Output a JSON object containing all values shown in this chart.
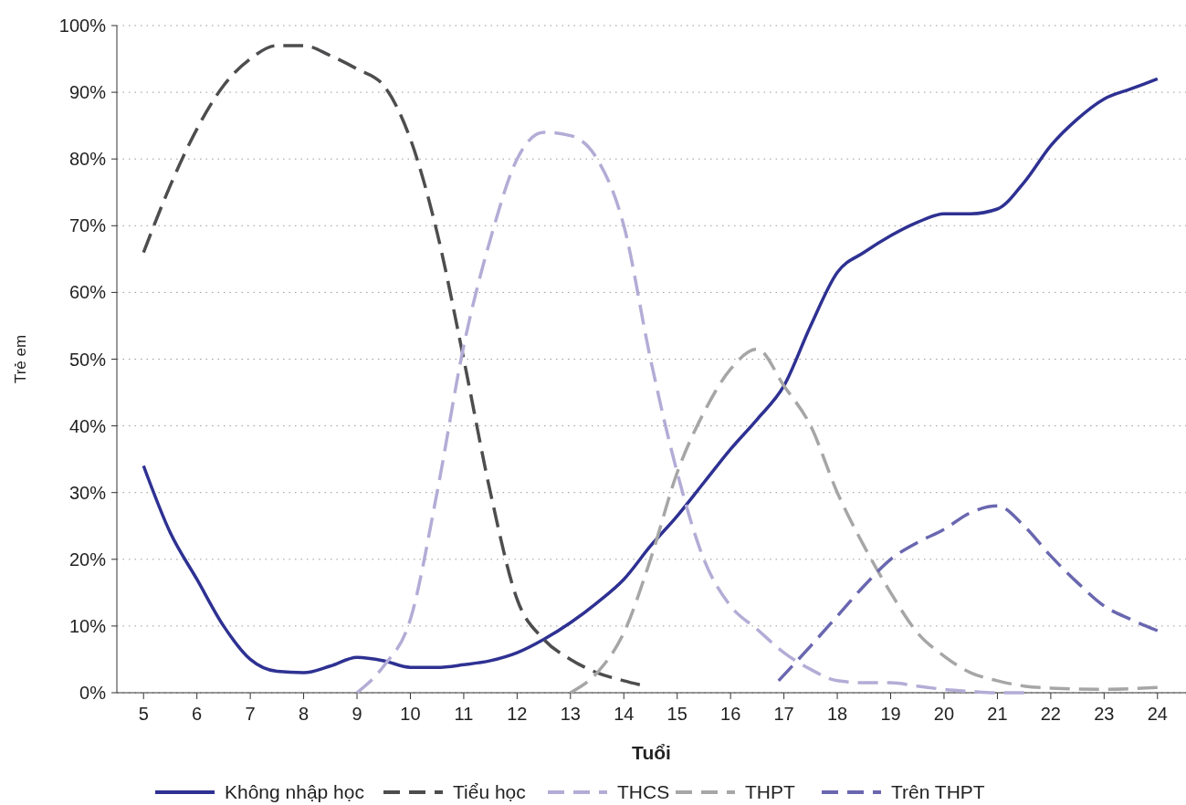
{
  "chart_data": {
    "type": "line",
    "xlabel": "Tuổi",
    "ylabel": "Trẻ em",
    "xlim": [
      4.5,
      24.5
    ],
    "ylim": [
      0,
      100
    ],
    "xticks": [
      5,
      6,
      7,
      8,
      9,
      10,
      11,
      12,
      13,
      14,
      15,
      16,
      17,
      18,
      19,
      20,
      21,
      22,
      23,
      24
    ],
    "yticks": [
      {
        "value": 0,
        "label": "0%"
      },
      {
        "value": 10,
        "label": "10%"
      },
      {
        "value": 20,
        "label": "20%"
      },
      {
        "value": 30,
        "label": "30%"
      },
      {
        "value": 40,
        "label": "40%"
      },
      {
        "value": 50,
        "label": "50%"
      },
      {
        "value": 60,
        "label": "60%"
      },
      {
        "value": 70,
        "label": "70%"
      },
      {
        "value": 80,
        "label": "80%"
      },
      {
        "value": 90,
        "label": "90%"
      },
      {
        "value": 100,
        "label": "100%"
      }
    ],
    "grid": "y",
    "legend": "bottom",
    "marker": "none",
    "series": [
      {
        "name": "Không nhập học",
        "color": "#2e3192",
        "line_style": "solid",
        "x": [
          5,
          5.5,
          6,
          6.5,
          7,
          7.5,
          8,
          8.5,
          9,
          9.5,
          10,
          10.5,
          11,
          11.5,
          12,
          12.5,
          13,
          13.5,
          14,
          14.5,
          15,
          15.5,
          16,
          16.5,
          17,
          17.5,
          18,
          18.5,
          19,
          19.5,
          20,
          20.5,
          21,
          21.5,
          22,
          22.5,
          23,
          23.5,
          24
        ],
        "values": [
          34,
          24,
          17,
          10,
          5,
          3.2,
          3,
          4,
          5.3,
          4.8,
          3.8,
          3.8,
          4.2,
          4.8,
          6,
          8,
          10.5,
          13.5,
          17,
          22,
          26.5,
          31.5,
          36.5,
          41,
          46,
          55,
          63,
          66,
          68.5,
          70.5,
          71.8,
          71.8,
          72.5,
          76.5,
          82,
          86,
          89,
          90.5,
          92
        ]
      },
      {
        "name": "Tiểu học",
        "color": "#4d4d4f",
        "line_style": "dashed",
        "x": [
          5,
          5.5,
          6,
          6.5,
          7,
          7.5,
          8,
          8.5,
          9,
          9.5,
          10,
          10.5,
          11,
          11.5,
          12,
          12.5,
          13,
          13.5,
          14,
          14.3
        ],
        "values": [
          66,
          76,
          84.5,
          91,
          95,
          97,
          97,
          95.5,
          93.5,
          91,
          83,
          69,
          50,
          30,
          14,
          8,
          5,
          3,
          1.8,
          1.2
        ]
      },
      {
        "name": "THCS",
        "color": "#b3acd6",
        "line_style": "dashed",
        "x": [
          9,
          9.5,
          10,
          10.5,
          11,
          11.5,
          12,
          12.5,
          13,
          13.5,
          14,
          14.5,
          15,
          15.5,
          16,
          16.5,
          17,
          17.5,
          18,
          18.5,
          19,
          19.5,
          20,
          20.5,
          21,
          21.5
        ],
        "values": [
          0,
          4,
          11,
          30,
          52,
          68,
          80,
          84,
          83.5,
          80,
          70,
          50,
          33,
          20,
          13,
          9.5,
          6,
          3.5,
          1.8,
          1.5,
          1.5,
          1,
          0.5,
          0.2,
          0,
          0
        ]
      },
      {
        "name": "THPT",
        "color": "#a6a6a6",
        "line_style": "dashed",
        "x": [
          13,
          13.5,
          14,
          14.5,
          15,
          15.5,
          16,
          16.5,
          17,
          17.5,
          18,
          18.5,
          19,
          19.5,
          20,
          20.5,
          21,
          21.5,
          22,
          23,
          24
        ],
        "values": [
          0,
          3,
          9,
          20,
          33,
          42,
          48.5,
          51.5,
          46,
          40,
          30,
          22,
          15,
          9,
          5.5,
          3,
          1.8,
          1,
          0.7,
          0.5,
          0.8
        ]
      },
      {
        "name": "Trên THPT",
        "color": "#6a67b0",
        "line_style": "dashed",
        "x": [
          16.9,
          17.5,
          18,
          18.5,
          19,
          19.5,
          20,
          20.5,
          21,
          21.5,
          22,
          22.5,
          23,
          23.5,
          24
        ],
        "values": [
          1.8,
          7,
          11.5,
          16,
          20,
          22.5,
          24.5,
          27,
          28,
          25,
          20.5,
          16.5,
          13,
          11,
          9.3
        ]
      }
    ]
  }
}
